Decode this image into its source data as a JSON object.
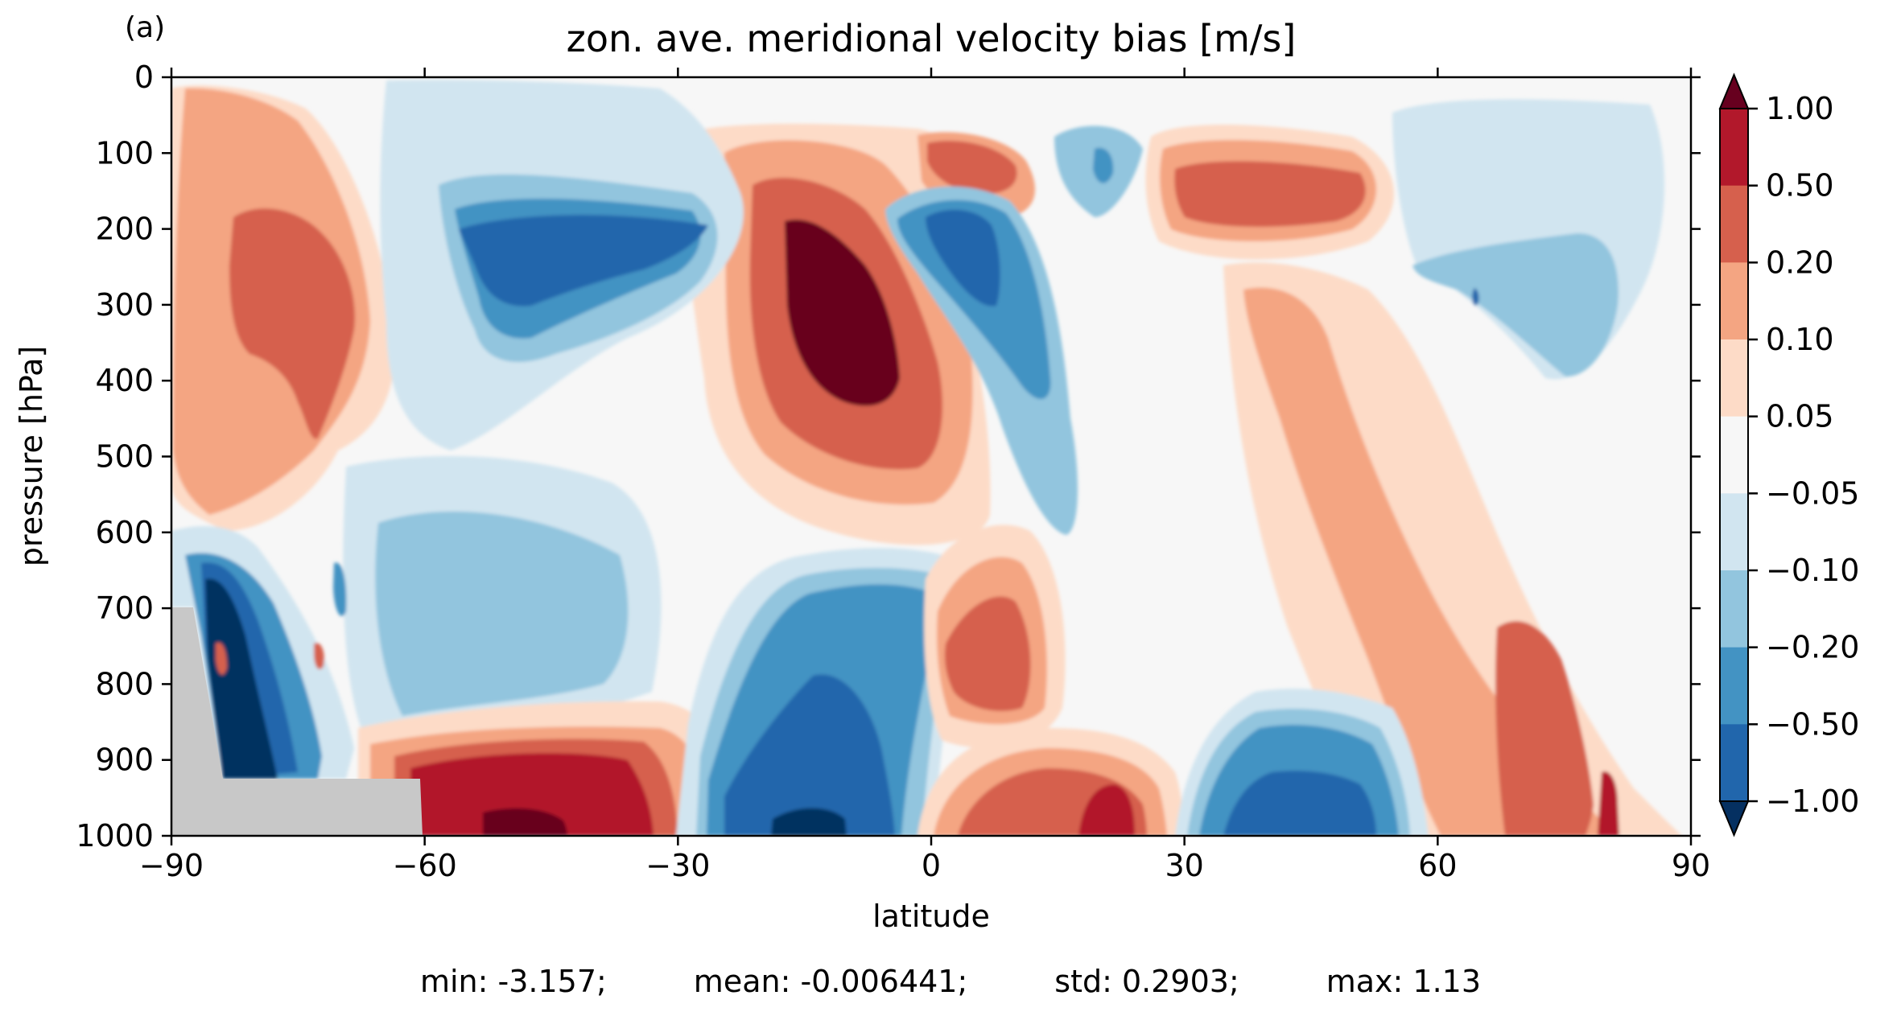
{
  "chart_data": {
    "type": "contour",
    "panel_label": "(a)",
    "title": "zon. ave. meridional velocity bias [m/s]",
    "xlabel": "latitude",
    "ylabel": "pressure [hPa]",
    "xlim": [
      -90,
      90
    ],
    "ylim": [
      1000,
      0
    ],
    "y_inverted": true,
    "x_ticks": [
      -90,
      -60,
      -30,
      0,
      30,
      60,
      90
    ],
    "x_tick_labels": [
      "−90",
      "−60",
      "−30",
      "0",
      "30",
      "60",
      "90"
    ],
    "y_ticks": [
      0,
      100,
      200,
      300,
      400,
      500,
      600,
      700,
      800,
      900,
      1000
    ],
    "y_tick_labels": [
      "0",
      "100",
      "200",
      "300",
      "400",
      "500",
      "600",
      "700",
      "800",
      "900",
      "1000"
    ],
    "colorbar": {
      "extend": "both",
      "levels": [
        -1.0,
        -0.5,
        -0.2,
        -0.1,
        -0.05,
        0.05,
        0.1,
        0.2,
        0.5,
        1.0
      ],
      "tick_labels": [
        "1.00",
        "0.50",
        "0.20",
        "0.10",
        "0.05",
        "−0.05",
        "−0.10",
        "−0.20",
        "−0.50",
        "−1.00"
      ],
      "colors_low_to_high": [
        "#053061",
        "#08306b",
        "#2166ac",
        "#4393c3",
        "#92c5de",
        "#d1e5f0",
        "#f7f7f7",
        "#fddbc7",
        "#f4a582",
        "#d6604d",
        "#b2182b",
        "#67001f"
      ]
    },
    "missing_color": "#c8c8c8",
    "features": [
      {
        "kind": "positive",
        "level": 1.0,
        "lat": [
          -17,
          -3
        ],
        "p": [
          230,
          430
        ],
        "note": "upper-troposphere maximum near equator"
      },
      {
        "kind": "negative",
        "level": -0.5,
        "lat": [
          -2,
          8
        ],
        "p": [
          180,
          300
        ]
      },
      {
        "kind": "positive",
        "level": 0.5,
        "lat": [
          -85,
          -72
        ],
        "p": [
          180,
          560
        ]
      },
      {
        "kind": "negative",
        "level": -0.2,
        "lat": [
          -58,
          -30
        ],
        "p": [
          160,
          330
        ]
      },
      {
        "kind": "positive",
        "level": 0.5,
        "lat": [
          28,
          52
        ],
        "p": [
          120,
          270
        ]
      },
      {
        "kind": "positive",
        "level": 1.0,
        "lat": [
          -57,
          -35
        ],
        "p": [
          880,
          1000
        ],
        "note": "near-surface maximum"
      },
      {
        "kind": "negative",
        "level": -0.5,
        "lat": [
          -23,
          -5
        ],
        "p": [
          820,
          1000
        ]
      },
      {
        "kind": "negative",
        "level": -1.0,
        "lat": [
          -84,
          -72
        ],
        "p": [
          620,
          930
        ],
        "note": "Antarctic surface minimum"
      },
      {
        "kind": "negative",
        "level": -0.5,
        "lat": [
          32,
          55
        ],
        "p": [
          880,
          1000
        ]
      },
      {
        "kind": "positive",
        "level": 0.5,
        "lat": [
          18,
          28
        ],
        "p": [
          870,
          1000
        ]
      }
    ],
    "stats": {
      "min": "min: -3.157;",
      "mean": "mean: -0.006441;",
      "std": "std: 0.2903;",
      "max": "max: 1.13"
    }
  }
}
